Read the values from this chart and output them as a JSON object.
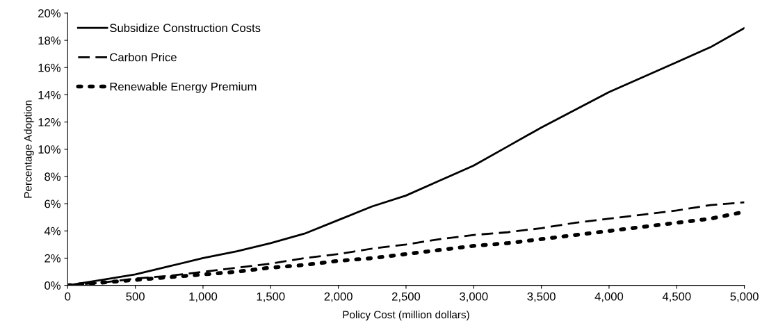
{
  "chart_data": {
    "type": "line",
    "xlabel": "Policy Cost (million dollars)",
    "ylabel": "Percentage Adoption",
    "x": [
      0,
      250,
      500,
      750,
      1000,
      1250,
      1500,
      1750,
      2000,
      2250,
      2500,
      2750,
      3000,
      3250,
      3500,
      3750,
      4000,
      4250,
      4500,
      4750,
      5000
    ],
    "series": [
      {
        "name": "Subsidize Construction Costs",
        "color": "#000000",
        "line_style": "solid",
        "values": [
          0,
          0.4,
          0.8,
          1.4,
          2.0,
          2.5,
          3.1,
          3.8,
          4.8,
          5.8,
          6.6,
          7.7,
          8.8,
          10.2,
          11.6,
          12.9,
          14.2,
          15.3,
          16.4,
          17.5,
          18.9
        ]
      },
      {
        "name": "Carbon Price",
        "color": "#000000",
        "line_style": "dashed",
        "values": [
          0,
          0.2,
          0.5,
          0.7,
          1.0,
          1.3,
          1.6,
          2.0,
          2.3,
          2.7,
          3.0,
          3.4,
          3.7,
          3.9,
          4.2,
          4.6,
          4.9,
          5.2,
          5.5,
          5.9,
          6.1
        ]
      },
      {
        "name": "Renewable Energy Premium",
        "color": "#000000",
        "line_style": "dotted",
        "values": [
          0,
          0.2,
          0.4,
          0.6,
          0.8,
          1.0,
          1.3,
          1.5,
          1.8,
          2.0,
          2.3,
          2.6,
          2.9,
          3.1,
          3.4,
          3.7,
          4.0,
          4.3,
          4.6,
          4.9,
          5.4
        ]
      }
    ],
    "xlim": [
      0,
      5000
    ],
    "xticks": [
      0,
      500,
      {
        "value": 1000,
        "label": "1,000"
      },
      {
        "value": 1500,
        "label": "1,500"
      },
      {
        "value": 2000,
        "label": "2,000"
      },
      {
        "value": 2500,
        "label": "2,500"
      },
      {
        "value": 3000,
        "label": "3,000"
      },
      {
        "value": 3500,
        "label": "3,500"
      },
      {
        "value": 4000,
        "label": "4,000"
      },
      {
        "value": 4500,
        "label": "4,500"
      },
      {
        "value": 5000,
        "label": "5,000"
      }
    ],
    "ylim": [
      0,
      20
    ],
    "yticks": [
      {
        "value": 0,
        "label": "0%"
      },
      {
        "value": 2,
        "label": "2%"
      },
      {
        "value": 4,
        "label": "4%"
      },
      {
        "value": 6,
        "label": "6%"
      },
      {
        "value": 8,
        "label": "8%"
      },
      {
        "value": 10,
        "label": "10%"
      },
      {
        "value": 12,
        "label": "12%"
      },
      {
        "value": 14,
        "label": "14%"
      },
      {
        "value": 16,
        "label": "16%"
      },
      {
        "value": 18,
        "label": "18%"
      },
      {
        "value": 20,
        "label": "20%"
      }
    ],
    "grid": false,
    "legend": "top left",
    "marker": "none"
  }
}
